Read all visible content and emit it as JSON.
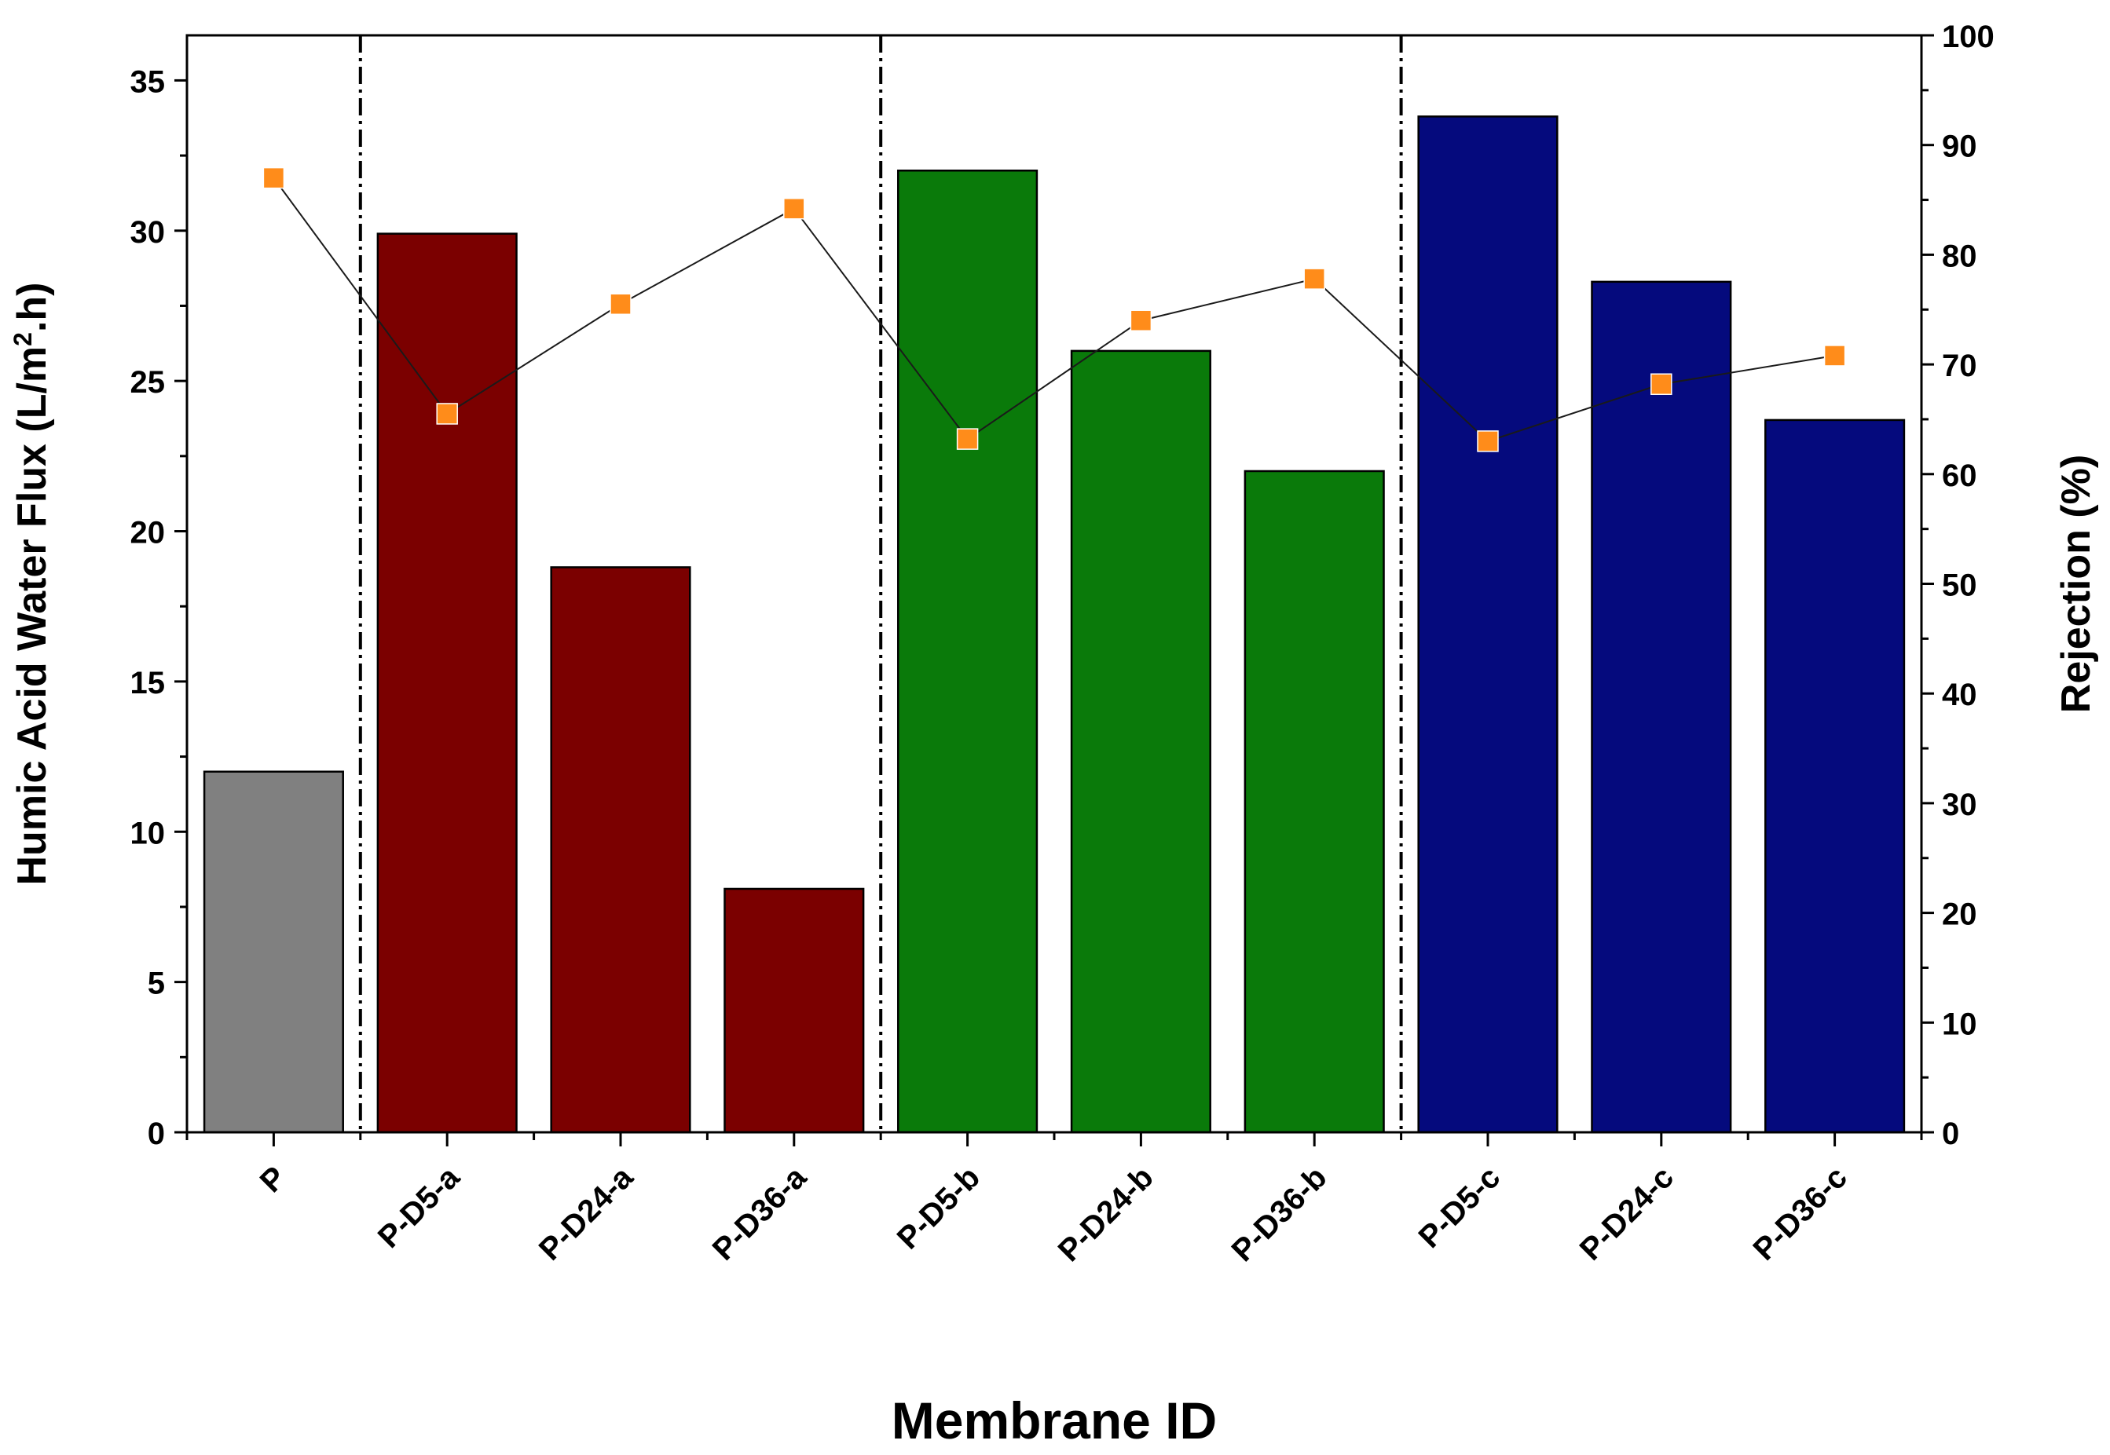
{
  "chart_data": {
    "type": "bar",
    "title": "",
    "xlabel": "Membrane ID",
    "ylabel_left_prefix": "Humic Acid Water Flux (L/m",
    "ylabel_left_sup": "2",
    "ylabel_left_suffix": ".h)",
    "ylabel_right": "Rejection (%)",
    "categories": [
      "P",
      "P-D5-a",
      "P-D24-a",
      "P-D36-a",
      "P-D5-b",
      "P-D24-b",
      "P-D36-b",
      "P-D5-c",
      "P-D24-c",
      "P-D36-c"
    ],
    "flux": [
      12.0,
      29.9,
      18.8,
      8.1,
      32.0,
      26.0,
      22.0,
      33.8,
      28.3,
      23.7
    ],
    "rejection": [
      87.0,
      65.5,
      75.5,
      84.2,
      63.2,
      74.0,
      77.8,
      63.0,
      68.2,
      70.8
    ],
    "bar_colors": [
      "#808080",
      "#7b0000",
      "#7b0000",
      "#7b0000",
      "#0a7a0a",
      "#0a7a0a",
      "#0a7a0a",
      "#050a7d",
      "#050a7d",
      "#050a7d"
    ],
    "marker_color": "#ff8c1a",
    "ylim_left": [
      0,
      36.5
    ],
    "ylim_right": [
      0,
      100
    ],
    "yticks_left": [
      0,
      5,
      10,
      15,
      20,
      25,
      30,
      35
    ],
    "yticks_right": [
      0,
      10,
      20,
      30,
      40,
      50,
      60,
      70,
      80,
      90,
      100
    ],
    "group_dividers_after": [
      0,
      3,
      6
    ]
  }
}
